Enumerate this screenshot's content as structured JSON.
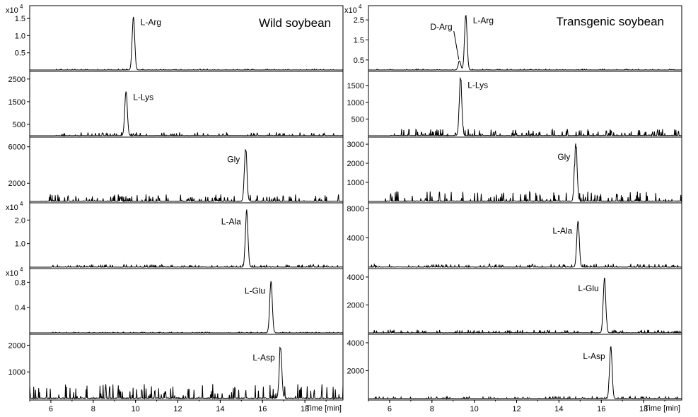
{
  "figure": {
    "x_axis_label": "Time [min]",
    "xlim": [
      5,
      19.8
    ]
  },
  "chart_data": [
    {
      "type": "line",
      "title": "Wild soybean",
      "panels": [
        {
          "id": "w1",
          "multiplier": "x10^4",
          "multiplier_base": "x10",
          "multiplier_exp": "4",
          "ylim": [
            0,
            1.75
          ],
          "yticks": [
            {
              "v": 0.5,
              "label": "0.5"
            },
            {
              "v": 1.0,
              "label": "1.0"
            },
            {
              "v": 1.5,
              "label": "1.5"
            }
          ],
          "peaks": [
            {
              "name": "L-Arg",
              "time": 9.9,
              "height": 1.55
            }
          ],
          "noise": 0.012,
          "noise_from": 6.2
        },
        {
          "id": "w2",
          "multiplier": "",
          "ylim": [
            0,
            2650
          ],
          "yticks": [
            {
              "v": 500,
              "label": "500"
            },
            {
              "v": 1500,
              "label": "1500"
            },
            {
              "v": 2500,
              "label": "2500"
            }
          ],
          "peaks": [
            {
              "name": "L-Lys",
              "time": 9.55,
              "height": 1950
            }
          ],
          "noise": 70,
          "noise_from": 6.2
        },
        {
          "id": "w3",
          "multiplier": "",
          "ylim": [
            0,
            6600
          ],
          "yticks": [
            {
              "v": 2000,
              "label": "2000"
            },
            {
              "v": 6000,
              "label": "6000"
            }
          ],
          "peaks": [
            {
              "name": "Gly",
              "time": 15.2,
              "height": 5700
            }
          ],
          "noise": 350,
          "noise_from": 5.5
        },
        {
          "id": "w4",
          "multiplier": "x10^4",
          "multiplier_base": "x10",
          "multiplier_exp": "4",
          "ylim": [
            0,
            2.55
          ],
          "yticks": [
            {
              "v": 1.0,
              "label": "1.0"
            },
            {
              "v": 2.0,
              "label": "2.0"
            }
          ],
          "peaks": [
            {
              "name": "L-Ala",
              "time": 15.25,
              "height": 2.35
            }
          ],
          "noise": 0.05,
          "noise_from": 6.0
        },
        {
          "id": "w5",
          "multiplier": "x10^4",
          "multiplier_base": "x10",
          "multiplier_exp": "4",
          "ylim": [
            0,
            0.95
          ],
          "yticks": [
            {
              "v": 0.4,
              "label": "0.4"
            },
            {
              "v": 0.8,
              "label": "0.8"
            }
          ],
          "peaks": [
            {
              "name": "L-Glu",
              "time": 16.4,
              "height": 0.82
            }
          ],
          "noise": 0.006,
          "noise_from": 6.0
        },
        {
          "id": "w6",
          "multiplier": "",
          "ylim": [
            0,
            2250
          ],
          "yticks": [
            {
              "v": 1000,
              "label": "1000"
            },
            {
              "v": 2000,
              "label": "2000"
            }
          ],
          "peaks": [
            {
              "name": "L-Asp",
              "time": 16.85,
              "height": 1900
            }
          ],
          "noise": 250,
          "noise_from": 5.0
        }
      ]
    },
    {
      "type": "line",
      "title": "Transgenic soybean",
      "panels": [
        {
          "id": "t1",
          "multiplier": "x10^4",
          "multiplier_base": "x10",
          "multiplier_exp": "4",
          "ylim": [
            0,
            3.0
          ],
          "yticks": [
            {
              "v": 0.5,
              "label": "0.5"
            },
            {
              "v": 1.5,
              "label": "1.5"
            },
            {
              "v": 2.5,
              "label": "2.5"
            }
          ],
          "peaks": [
            {
              "name": "L-Arg",
              "time": 9.6,
              "height": 2.75
            },
            {
              "name": "D-Arg",
              "time": 9.3,
              "height": 0.45
            }
          ],
          "noise": 0.02,
          "noise_from": 5.0
        },
        {
          "id": "t2",
          "multiplier": "",
          "ylim": [
            0,
            1800
          ],
          "yticks": [
            {
              "v": 500,
              "label": "500"
            },
            {
              "v": 1000,
              "label": "1000"
            },
            {
              "v": 1500,
              "label": "1500"
            }
          ],
          "peaks": [
            {
              "name": "L-Lys",
              "time": 9.35,
              "height": 1680
            }
          ],
          "noise": 90,
          "noise_from": 6.0
        },
        {
          "id": "t3",
          "multiplier": "",
          "ylim": [
            0,
            3150
          ],
          "yticks": [
            {
              "v": 1000,
              "label": "1000"
            },
            {
              "v": 2000,
              "label": "2000"
            },
            {
              "v": 3000,
              "label": "3000"
            }
          ],
          "peaks": [
            {
              "name": "Gly",
              "time": 14.8,
              "height": 2850
            }
          ],
          "noise": 250,
          "noise_from": 5.8
        },
        {
          "id": "t4",
          "multiplier": "",
          "ylim": [
            0,
            8200
          ],
          "yticks": [
            {
              "v": 4000,
              "label": "4000"
            },
            {
              "v": 8000,
              "label": "8000"
            }
          ],
          "peaks": [
            {
              "name": "L-Ala",
              "time": 14.9,
              "height": 6300
            }
          ],
          "noise": 200,
          "noise_from": 5.0
        },
        {
          "id": "t5",
          "multiplier": "",
          "ylim": [
            0,
            4300
          ],
          "yticks": [
            {
              "v": 2000,
              "label": "2000"
            },
            {
              "v": 4000,
              "label": "4000"
            }
          ],
          "peaks": [
            {
              "name": "L-Glu",
              "time": 16.15,
              "height": 3900
            }
          ],
          "noise": 100,
          "noise_from": 5.2
        },
        {
          "id": "t6",
          "multiplier": "",
          "ylim": [
            0,
            4300
          ],
          "yticks": [
            {
              "v": 2000,
              "label": "2000"
            },
            {
              "v": 4000,
              "label": "4000"
            }
          ],
          "peaks": [
            {
              "name": "L-Asp",
              "time": 16.45,
              "height": 3750
            }
          ],
          "noise": 70,
          "noise_from": 5.2
        }
      ]
    }
  ],
  "colors": {
    "line": "#000000",
    "frame": "#000000",
    "background": "#ffffff"
  }
}
